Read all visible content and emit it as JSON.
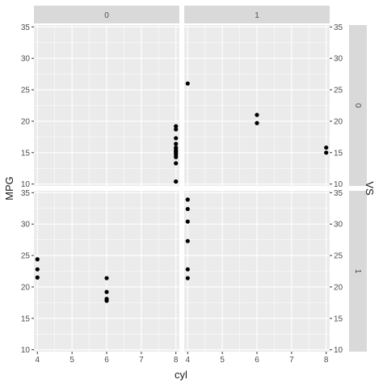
{
  "chart_data": {
    "type": "scatter",
    "title": "",
    "xlabel": "cyl",
    "ylabel": "MPG",
    "right_label": "VS",
    "xlim": [
      3.9,
      8.1
    ],
    "ylim": [
      9.7,
      35.3
    ],
    "x_ticks": [
      4,
      5,
      6,
      7,
      8
    ],
    "y_ticks": [
      10,
      15,
      20,
      25,
      30,
      35
    ],
    "grid": true,
    "col_strips": [
      "0",
      "1"
    ],
    "row_strips": [
      "0",
      "1"
    ],
    "panels": [
      {
        "row": 0,
        "col": 0,
        "points": [
          {
            "x": 8,
            "y": 10.4
          },
          {
            "x": 8,
            "y": 10.4
          },
          {
            "x": 8,
            "y": 13.3
          },
          {
            "x": 8,
            "y": 14.3
          },
          {
            "x": 8,
            "y": 14.7
          },
          {
            "x": 8,
            "y": 15.0
          },
          {
            "x": 8,
            "y": 15.2
          },
          {
            "x": 8,
            "y": 15.5
          },
          {
            "x": 8,
            "y": 15.8
          },
          {
            "x": 8,
            "y": 16.4
          },
          {
            "x": 8,
            "y": 17.3
          },
          {
            "x": 8,
            "y": 18.7
          },
          {
            "x": 8,
            "y": 19.2
          }
        ]
      },
      {
        "row": 0,
        "col": 1,
        "points": [
          {
            "x": 4,
            "y": 26.0
          },
          {
            "x": 6,
            "y": 21.0
          },
          {
            "x": 6,
            "y": 19.7
          },
          {
            "x": 8,
            "y": 15.8
          },
          {
            "x": 8,
            "y": 15.0
          }
        ]
      },
      {
        "row": 1,
        "col": 0,
        "points": [
          {
            "x": 4,
            "y": 24.4
          },
          {
            "x": 4,
            "y": 22.8
          },
          {
            "x": 4,
            "y": 21.5
          },
          {
            "x": 6,
            "y": 21.4
          },
          {
            "x": 6,
            "y": 19.2
          },
          {
            "x": 6,
            "y": 18.1
          },
          {
            "x": 6,
            "y": 17.8
          }
        ]
      },
      {
        "row": 1,
        "col": 1,
        "points": [
          {
            "x": 4,
            "y": 33.9
          },
          {
            "x": 4,
            "y": 32.4
          },
          {
            "x": 4,
            "y": 30.4
          },
          {
            "x": 4,
            "y": 27.3
          },
          {
            "x": 4,
            "y": 22.8
          },
          {
            "x": 4,
            "y": 21.4
          }
        ]
      }
    ]
  },
  "colors": {
    "panel_bg": "#ebebeb",
    "grid": "#ffffff",
    "strip_bg": "#d9d9d9",
    "text": "#1a1a1a",
    "tick_text": "#4d4d4d",
    "point": "#000000"
  }
}
